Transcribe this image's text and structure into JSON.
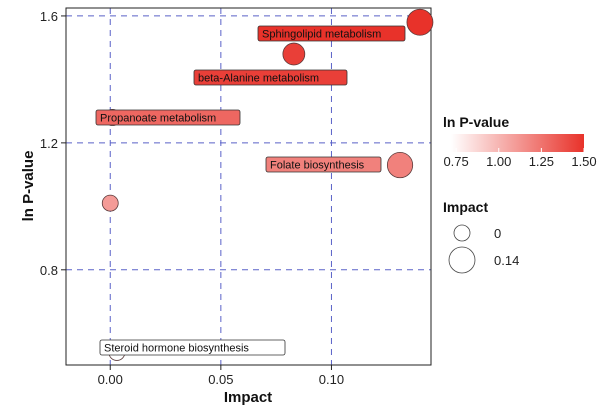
{
  "chart_data": {
    "type": "scatter",
    "title": "",
    "xlabel": "Impact",
    "ylabel": "ln P-value",
    "xlim": [
      -0.02,
      0.145
    ],
    "ylim": [
      0.5,
      1.625
    ],
    "x_ticks": [
      {
        "value": 0.0,
        "label": "0.00"
      },
      {
        "value": 0.05,
        "label": "0.05"
      },
      {
        "value": 0.1,
        "label": "0.10"
      }
    ],
    "y_ticks": [
      {
        "value": 0.8,
        "label": "0.8"
      },
      {
        "value": 1.2,
        "label": "1.2"
      },
      {
        "value": 1.6,
        "label": "1.6"
      }
    ],
    "grid": "dashed",
    "points": [
      {
        "label": "Sphingolipid metabolism",
        "x": 0.14,
        "y": 1.58,
        "lnp": 1.5
      },
      {
        "label": "beta-Alanine metabolism",
        "x": 0.083,
        "y": 1.48,
        "lnp": 1.45
      },
      {
        "label": "Propanoate metabolism",
        "x": 0.001,
        "y": 1.28,
        "lnp": 1.3
      },
      {
        "label": "Folate biosynthesis",
        "x": 0.131,
        "y": 1.13,
        "lnp": 1.2
      },
      {
        "label": "",
        "x": 0.0,
        "y": 1.01,
        "lnp": 1.1
      },
      {
        "label": "Steroid hormone biosynthesis",
        "x": 0.003,
        "y": 0.54,
        "lnp": 0.72
      }
    ],
    "color_legend": {
      "title": "ln P-value",
      "min": 0.72,
      "max": 1.5,
      "low_color": "#ffffff",
      "high_color": "#e8322a",
      "ticks": [
        {
          "value": 0.75,
          "label": "0.75"
        },
        {
          "value": 1.0,
          "label": "1.00"
        },
        {
          "value": 1.25,
          "label": "1.25"
        },
        {
          "value": 1.5,
          "label": "1.50"
        }
      ]
    },
    "size_legend": {
      "title": "Impact",
      "entries": [
        {
          "value": 0,
          "label": "0"
        },
        {
          "value": 0.14,
          "label": "0.14"
        }
      ]
    },
    "colors": {
      "grid": "#5a62c8",
      "point_stroke": "#5a3a3a"
    }
  }
}
